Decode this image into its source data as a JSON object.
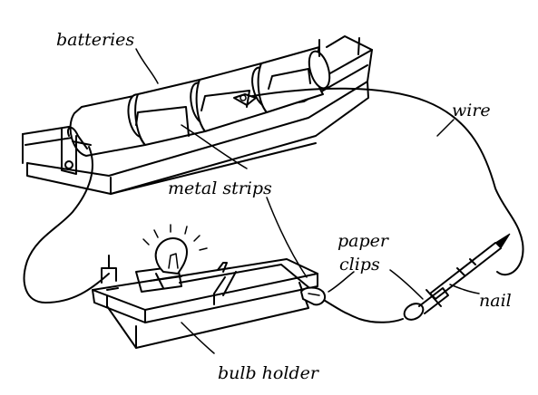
{
  "diagram": {
    "labels": {
      "batteries": "batteries",
      "wire": "wire",
      "metal_strips": "metal strips",
      "paper": "paper",
      "clips": "clips",
      "nail": "nail",
      "bulb_holder": "bulb holder"
    }
  }
}
